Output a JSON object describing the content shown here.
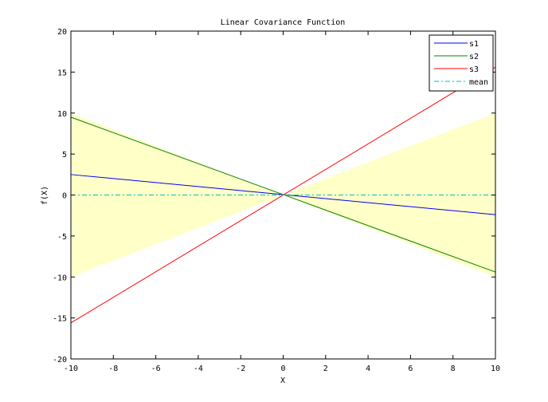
{
  "chart_data": {
    "type": "line",
    "title": "Linear Covariance Function",
    "xlabel": "X",
    "ylabel": "f(X)",
    "xlim": [
      -10,
      10
    ],
    "ylim": [
      -20,
      20
    ],
    "xticks": [
      -10,
      -8,
      -6,
      -4,
      -2,
      0,
      2,
      4,
      6,
      8,
      10
    ],
    "yticks": [
      -20,
      -15,
      -10,
      -5,
      0,
      5,
      10,
      15,
      20
    ],
    "grid": false,
    "legend_position": "top-right",
    "band": {
      "color": "#ffffc8",
      "x": [
        -10,
        10
      ],
      "upper": [
        10,
        10
      ],
      "lower": [
        -10,
        -10
      ]
    },
    "series": [
      {
        "name": "s1",
        "color": "#0000ff",
        "style": "solid",
        "x": [
          -10,
          10
        ],
        "y": [
          2.5,
          -2.4
        ]
      },
      {
        "name": "s2",
        "color": "#008000",
        "style": "solid",
        "x": [
          -10,
          10
        ],
        "y": [
          9.5,
          -9.4
        ]
      },
      {
        "name": "s3",
        "color": "#ff0000",
        "style": "solid",
        "x": [
          -10,
          10
        ],
        "y": [
          -15.6,
          15.6
        ]
      },
      {
        "name": "mean",
        "color": "#00bfbf",
        "style": "dashdot",
        "x": [
          -10,
          10
        ],
        "y": [
          0,
          0
        ]
      }
    ]
  }
}
